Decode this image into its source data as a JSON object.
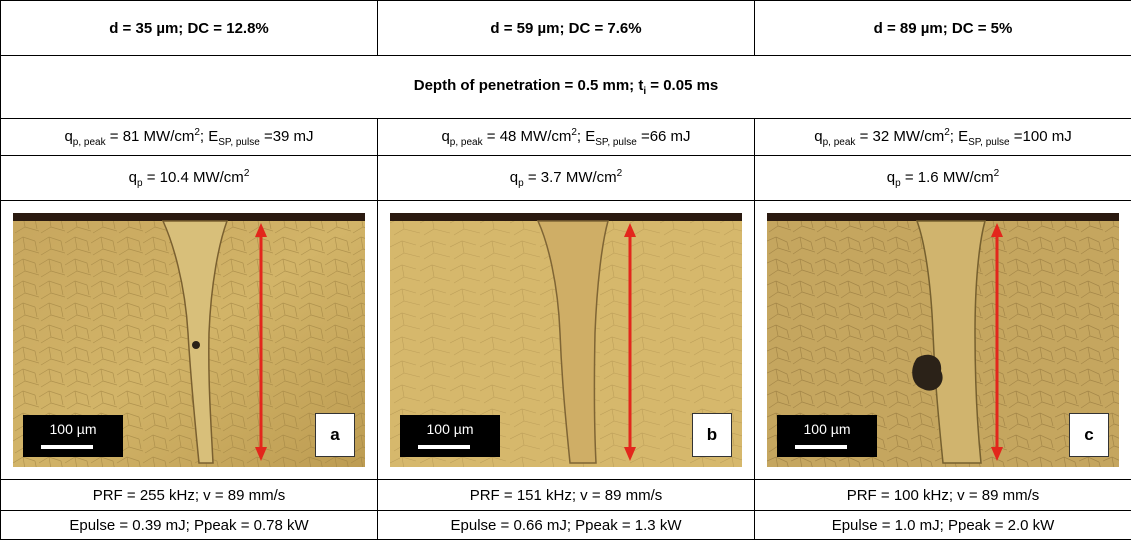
{
  "columns": [
    {
      "header": "d = 35 µm; DC = 12.8%",
      "q_peak_part1": "q",
      "q_peak_sub": "p, peak",
      "q_peak_part2": " = 81 MW/cm",
      "q_peak_sup": "2",
      "q_peak_part3": "; E",
      "e_sub": "SP, pulse",
      "q_peak_part4": " =39 mJ",
      "qp_part1": "q",
      "qp_sub": "p",
      "qp_part2": " = 10.4 MW/cm",
      "qp_sup": "2",
      "scale_label": "100 µm",
      "panel_letter": "a",
      "prf": "PRF = 255 kHz; v = 89 mm/s",
      "epulse": "Epulse = 0.39 mJ; Ppeak = 0.78 kW"
    },
    {
      "header": "d = 59 µm; DC = 7.6%",
      "q_peak_part1": "q",
      "q_peak_sub": "p, peak",
      "q_peak_part2": " = 48 MW/cm",
      "q_peak_sup": "2",
      "q_peak_part3": "; E",
      "e_sub": "SP, pulse",
      "q_peak_part4": " =66 mJ",
      "qp_part1": "q",
      "qp_sub": "p",
      "qp_part2": " = 3.7 MW/cm",
      "qp_sup": "2",
      "scale_label": "100 µm",
      "panel_letter": "b",
      "prf": "PRF = 151 kHz; v = 89 mm/s",
      "epulse": "Epulse = 0.66 mJ; Ppeak = 1.3 kW"
    },
    {
      "header": "d = 89 µm; DC = 5%",
      "q_peak_part1": "q",
      "q_peak_sub": "p, peak",
      "q_peak_part2": " = 32 MW/cm",
      "q_peak_sup": "2",
      "q_peak_part3": "; E",
      "e_sub": "SP, pulse",
      "q_peak_part4": " =100 mJ",
      "qp_part1": "q",
      "qp_sub": "p",
      "qp_part2": " = 1.6 MW/cm",
      "qp_sup": "2",
      "scale_label": "100 µm",
      "panel_letter": "c",
      "prf": "PRF = 100 kHz; v = 89 mm/s",
      "epulse": "Epulse = 1.0 mJ; Ppeak = 2.0 kW"
    }
  ],
  "depth_row": {
    "part1": "Depth of penetration = 0.5 mm; t",
    "sub": "i",
    "part2": " = 0.05 ms"
  },
  "colors": {
    "metal": "#c9a85c",
    "metal_dark": "#a88a45",
    "top_dark": "#2a1a10",
    "arrow": "#e3261c",
    "pore": "#2b2218"
  }
}
